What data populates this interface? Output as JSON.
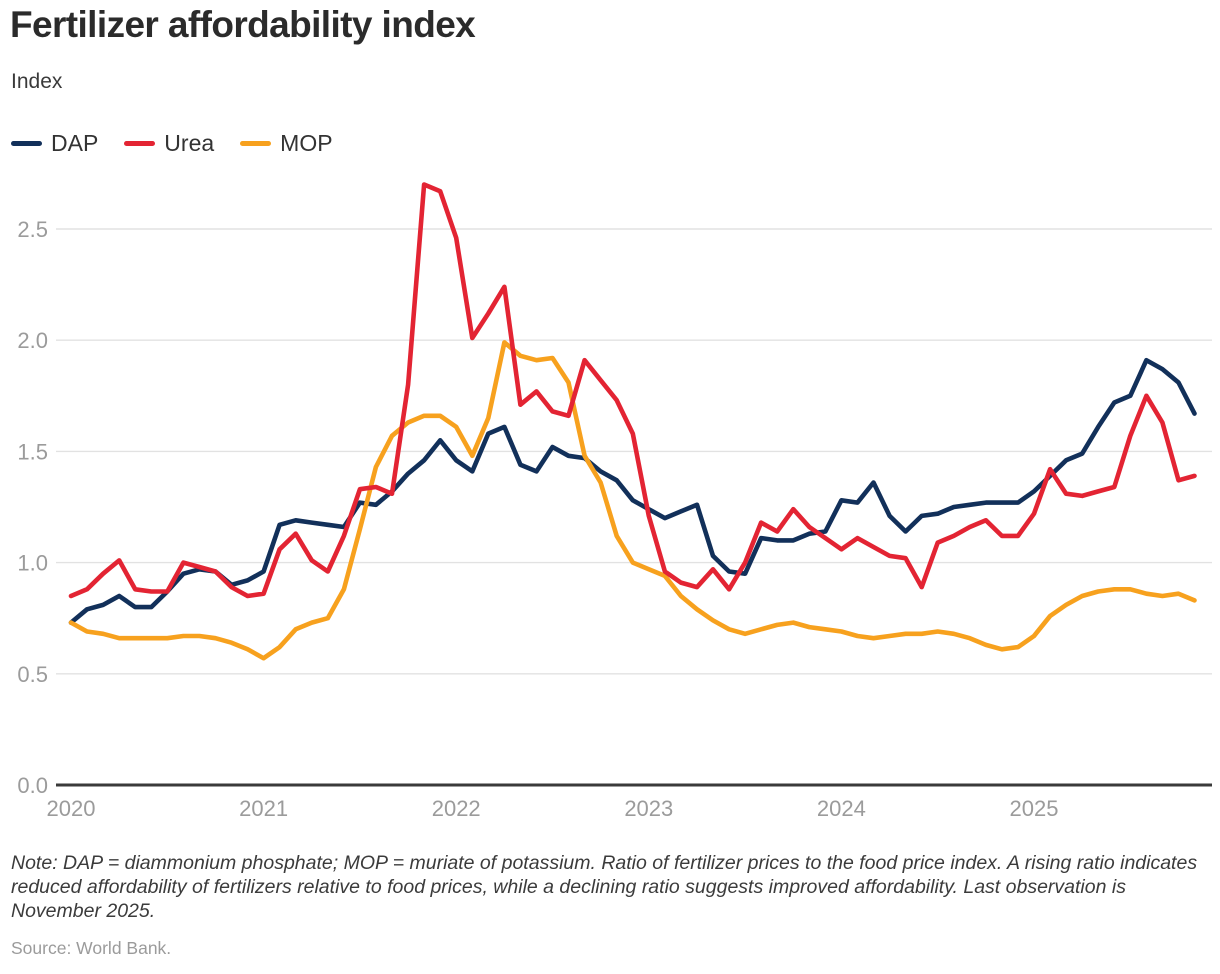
{
  "title": "Fertilizer affordability index",
  "subtitle": "Index",
  "legend": [
    {
      "label": "DAP",
      "color": "#12305a"
    },
    {
      "label": "Urea",
      "color": "#e32433"
    },
    {
      "label": "MOP",
      "color": "#f7a11e"
    }
  ],
  "note": "Note: DAP = diammonium phosphate; MOP = muriate of potassium. Ratio of fertilizer prices to the food price index. A rising ratio indicates reduced affordability of fertilizers relative to food prices, while a declining ratio suggests improved affordability. Last observation is November 2025.",
  "source": "Source: World Bank.",
  "colors": {
    "axis": "#3a3a3a",
    "grid": "#e2e2e2",
    "tick_label": "#9b9b9b"
  },
  "chart_data": {
    "type": "line",
    "title": "Fertilizer affordability index",
    "ylabel": "Index",
    "x_unit": "month",
    "x_start": "2020-01",
    "x_end": "2025-11",
    "points_per_series": 71,
    "x_tick_labels": [
      "2020",
      "2021",
      "2022",
      "2023",
      "2024",
      "2025"
    ],
    "y_ticks": [
      0.0,
      0.5,
      1.0,
      1.5,
      2.0,
      2.5
    ],
    "ylim": [
      0,
      2.8
    ],
    "grid": "horizontal",
    "legend_position": "top-left",
    "series": [
      {
        "name": "DAP",
        "color": "#12305a",
        "values": [
          0.73,
          0.79,
          0.81,
          0.85,
          0.8,
          0.8,
          0.87,
          0.95,
          0.97,
          0.96,
          0.9,
          0.92,
          0.96,
          1.17,
          1.19,
          1.18,
          1.17,
          1.16,
          1.27,
          1.26,
          1.32,
          1.4,
          1.46,
          1.55,
          1.46,
          1.41,
          1.58,
          1.61,
          1.44,
          1.41,
          1.52,
          1.48,
          1.47,
          1.41,
          1.37,
          1.28,
          1.24,
          1.2,
          1.23,
          1.26,
          1.03,
          0.96,
          0.95,
          1.11,
          1.1,
          1.1,
          1.13,
          1.14,
          1.28,
          1.27,
          1.36,
          1.21,
          1.14,
          1.21,
          1.22,
          1.25,
          1.26,
          1.27,
          1.27,
          1.27,
          1.32,
          1.39,
          1.46,
          1.49,
          1.61,
          1.72,
          1.75,
          1.91,
          1.87,
          1.81,
          1.67
        ]
      },
      {
        "name": "Urea",
        "color": "#e32433",
        "values": [
          0.85,
          0.88,
          0.95,
          1.01,
          0.88,
          0.87,
          0.87,
          1.0,
          0.98,
          0.96,
          0.89,
          0.85,
          0.86,
          1.06,
          1.13,
          1.01,
          0.96,
          1.12,
          1.33,
          1.34,
          1.31,
          1.8,
          2.7,
          2.67,
          2.46,
          2.01,
          2.12,
          2.24,
          1.71,
          1.77,
          1.68,
          1.66,
          1.91,
          1.82,
          1.73,
          1.58,
          1.21,
          0.96,
          0.91,
          0.89,
          0.97,
          0.88,
          1.0,
          1.18,
          1.14,
          1.24,
          1.16,
          1.11,
          1.06,
          1.11,
          1.07,
          1.03,
          1.02,
          0.89,
          1.09,
          1.12,
          1.16,
          1.19,
          1.12,
          1.12,
          1.22,
          1.42,
          1.31,
          1.3,
          1.32,
          1.34,
          1.57,
          1.75,
          1.63,
          1.37,
          1.39
        ]
      },
      {
        "name": "MOP",
        "color": "#f7a11e",
        "values": [
          0.73,
          0.69,
          0.68,
          0.66,
          0.66,
          0.66,
          0.66,
          0.67,
          0.67,
          0.66,
          0.64,
          0.61,
          0.57,
          0.62,
          0.7,
          0.73,
          0.75,
          0.88,
          1.15,
          1.43,
          1.57,
          1.63,
          1.66,
          1.66,
          1.61,
          1.48,
          1.65,
          1.99,
          1.93,
          1.91,
          1.92,
          1.81,
          1.48,
          1.36,
          1.12,
          1.0,
          0.97,
          0.94,
          0.85,
          0.79,
          0.74,
          0.7,
          0.68,
          0.7,
          0.72,
          0.73,
          0.71,
          0.7,
          0.69,
          0.67,
          0.66,
          0.67,
          0.68,
          0.68,
          0.69,
          0.68,
          0.66,
          0.63,
          0.61,
          0.62,
          0.67,
          0.76,
          0.81,
          0.85,
          0.87,
          0.88,
          0.88,
          0.86,
          0.85,
          0.86,
          0.83
        ]
      }
    ]
  }
}
